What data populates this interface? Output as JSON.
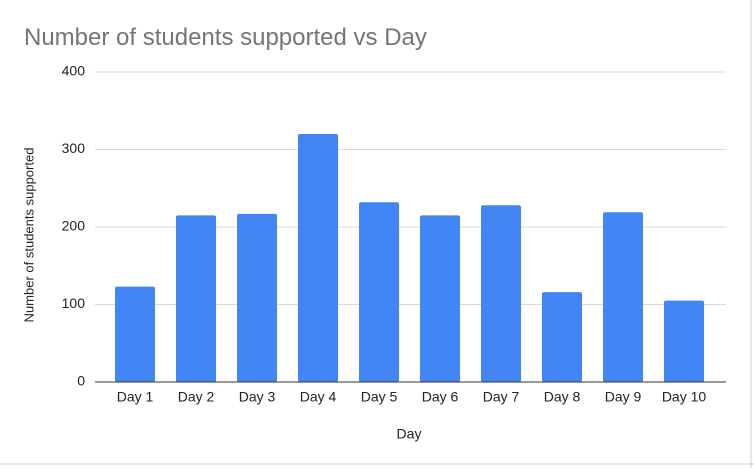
{
  "chart_data": {
    "type": "bar",
    "title": "Number of students supported vs Day",
    "x_label": "Day",
    "y_label": "Number of students supported",
    "categories": [
      "Day 1",
      "Day 2",
      "Day 3",
      "Day 4",
      "Day 5",
      "Day 6",
      "Day 7",
      "Day 8",
      "Day 9",
      "Day 10"
    ],
    "values": [
      123,
      215,
      217,
      320,
      232,
      215,
      228,
      116,
      219,
      105
    ],
    "color": "#4285f4",
    "ylim": [
      0,
      400
    ],
    "yticks": [
      0,
      100,
      200,
      300,
      400
    ],
    "grid": true
  }
}
